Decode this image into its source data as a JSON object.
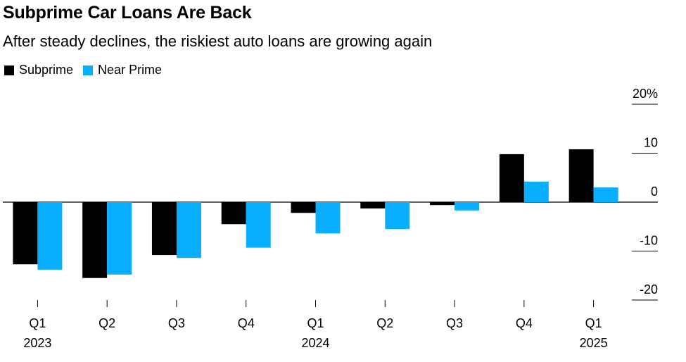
{
  "chart_data": {
    "type": "bar",
    "title": "Subprime Car Loans Are Back",
    "subtitle": "After steady declines, the riskiest auto loans are growing again",
    "categories": [
      "Q1",
      "Q2",
      "Q3",
      "Q4",
      "Q1",
      "Q2",
      "Q3",
      "Q4",
      "Q1"
    ],
    "year_labels": [
      "2023",
      "",
      "",
      "",
      "2024",
      "",
      "",
      "",
      "2025"
    ],
    "series": [
      {
        "name": "Subprime",
        "color": "#000000",
        "values": [
          -12.7,
          -15.5,
          -10.8,
          -4.5,
          -2.2,
          -1.3,
          -0.6,
          9.8,
          10.8
        ]
      },
      {
        "name": "Near Prime",
        "color": "#0aaeff",
        "values": [
          -13.8,
          -14.8,
          -11.4,
          -9.3,
          -6.4,
          -5.5,
          -1.7,
          4.2,
          3.0
        ]
      }
    ],
    "yticks": [
      20,
      10,
      0,
      -10,
      -20
    ],
    "ytick_labels": [
      "20%",
      "10",
      "0",
      "-10",
      "-20"
    ],
    "ylim": [
      -20,
      20
    ],
    "legend_position": "top-left",
    "ylabel_position": "right",
    "grid": false
  }
}
